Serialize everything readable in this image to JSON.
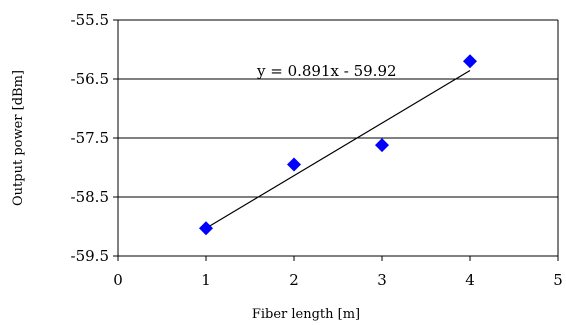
{
  "chart_data": {
    "type": "scatter",
    "title": "",
    "xlabel": "Fiber length [m]",
    "ylabel": "Output power [dBm]",
    "xlim": [
      0,
      5
    ],
    "ylim": [
      -59.5,
      -55.5
    ],
    "xticks": [
      0,
      1,
      2,
      3,
      4,
      5
    ],
    "yticks": [
      -55.5,
      -56.5,
      -57.5,
      -58.5,
      -59.5
    ],
    "x_tick_labels": [
      "0",
      "1",
      "2",
      "3",
      "4",
      "5"
    ],
    "y_tick_labels": [
      "-55.5",
      "-56.5",
      "-57.5",
      "-58.5",
      "-59.5"
    ],
    "grid": "horizontal",
    "legend": "none",
    "series": [
      {
        "marker": "diamond",
        "color": "#0000ff",
        "x": [
          1,
          2,
          3,
          4
        ],
        "y": [
          -59.03,
          -57.95,
          -57.62,
          -56.2
        ]
      }
    ],
    "trendline": {
      "type": "linear",
      "slope": 0.891,
      "intercept": -59.92,
      "x_range": [
        1,
        4
      ],
      "color": "#000000",
      "equation_label": "y = 0.891x - 59.92"
    }
  }
}
